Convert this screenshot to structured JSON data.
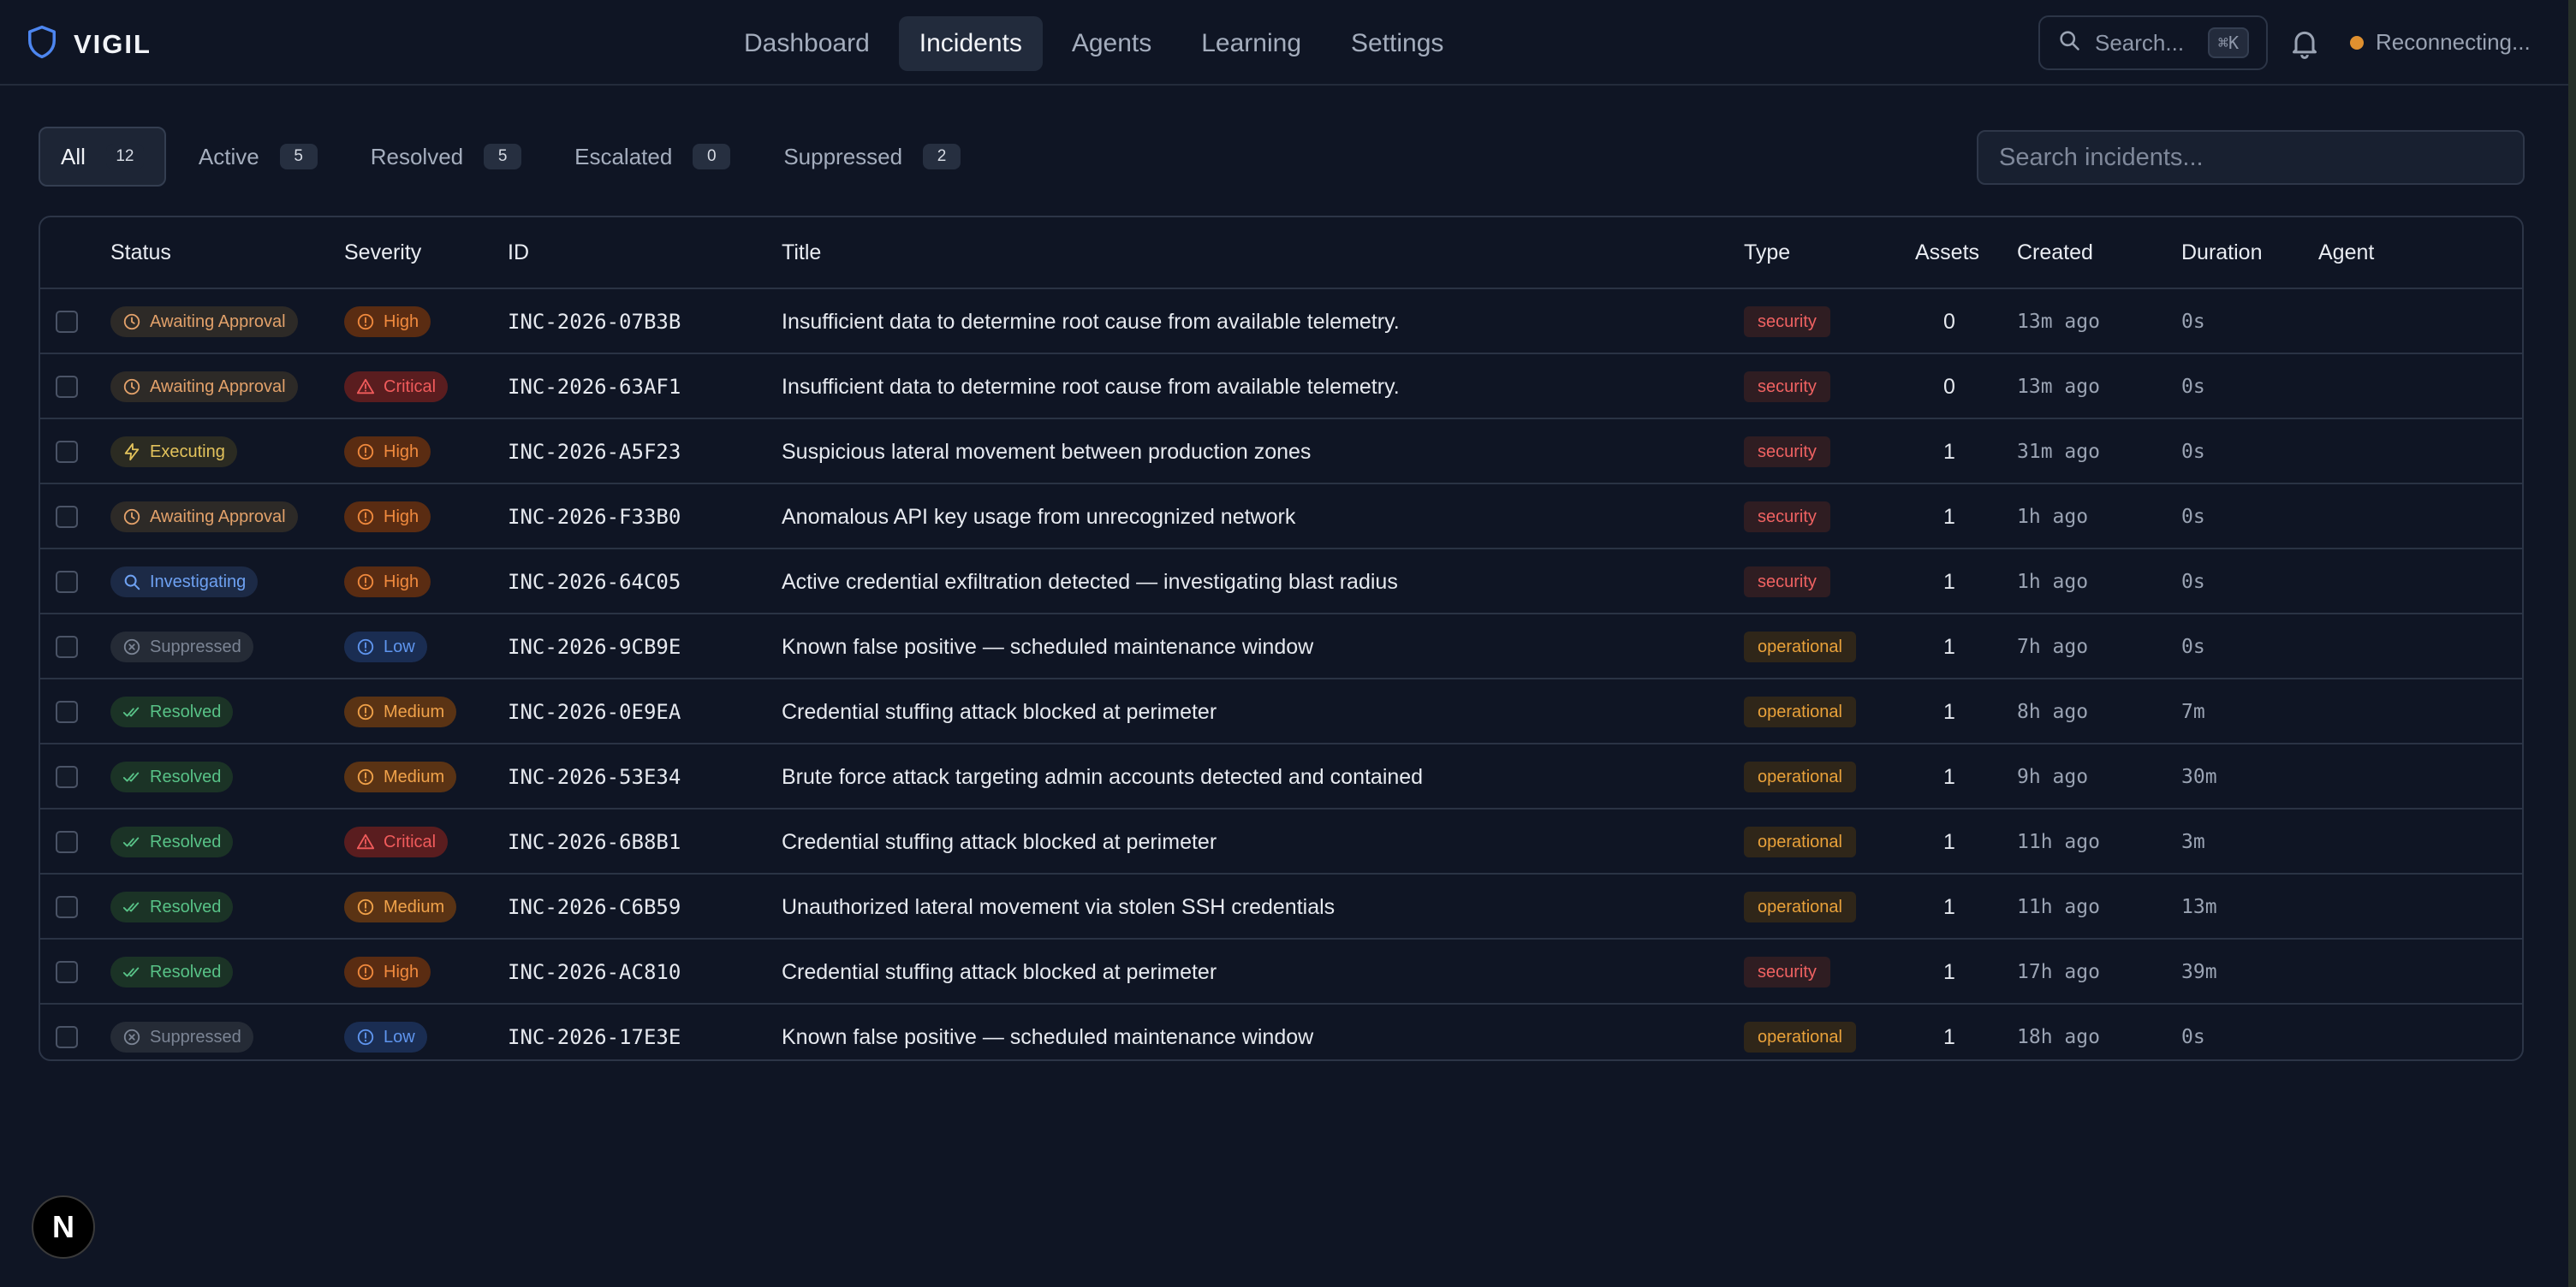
{
  "app": {
    "name": "VIGIL"
  },
  "nav": [
    {
      "label": "Dashboard"
    },
    {
      "label": "Incidents",
      "active": true
    },
    {
      "label": "Agents"
    },
    {
      "label": "Learning"
    },
    {
      "label": "Settings"
    }
  ],
  "global_search": {
    "label": "Search...",
    "shortcut": "⌘K"
  },
  "connection": {
    "status": "Reconnecting...",
    "color": "#e0902f"
  },
  "filters": [
    {
      "label": "All",
      "count": "12",
      "active": true
    },
    {
      "label": "Active",
      "count": "5"
    },
    {
      "label": "Resolved",
      "count": "5"
    },
    {
      "label": "Escalated",
      "count": "0"
    },
    {
      "label": "Suppressed",
      "count": "2"
    }
  ],
  "incident_search": {
    "placeholder": "Search incidents..."
  },
  "table": {
    "columns": [
      "Status",
      "Severity",
      "ID",
      "Title",
      "Type",
      "Assets",
      "Created",
      "Duration",
      "Agent"
    ],
    "rows": [
      {
        "status": "Awaiting Approval",
        "severity": "High",
        "id": "INC-2026-07B3B",
        "title": "Insufficient data to determine root cause from available telemetry.",
        "type": "security",
        "assets": "0",
        "created": "13m ago",
        "duration": "0s",
        "agent": ""
      },
      {
        "status": "Awaiting Approval",
        "severity": "Critical",
        "id": "INC-2026-63AF1",
        "title": "Insufficient data to determine root cause from available telemetry.",
        "type": "security",
        "assets": "0",
        "created": "13m ago",
        "duration": "0s",
        "agent": ""
      },
      {
        "status": "Executing",
        "severity": "High",
        "id": "INC-2026-A5F23",
        "title": "Suspicious lateral movement between production zones",
        "type": "security",
        "assets": "1",
        "created": "31m ago",
        "duration": "0s",
        "agent": ""
      },
      {
        "status": "Awaiting Approval",
        "severity": "High",
        "id": "INC-2026-F33B0",
        "title": "Anomalous API key usage from unrecognized network",
        "type": "security",
        "assets": "1",
        "created": "1h ago",
        "duration": "0s",
        "agent": ""
      },
      {
        "status": "Investigating",
        "severity": "High",
        "id": "INC-2026-64C05",
        "title": "Active credential exfiltration detected — investigating blast radius",
        "type": "security",
        "assets": "1",
        "created": "1h ago",
        "duration": "0s",
        "agent": ""
      },
      {
        "status": "Suppressed",
        "severity": "Low",
        "id": "INC-2026-9CB9E",
        "title": "Known false positive — scheduled maintenance window",
        "type": "operational",
        "assets": "1",
        "created": "7h ago",
        "duration": "0s",
        "agent": ""
      },
      {
        "status": "Resolved",
        "severity": "Medium",
        "id": "INC-2026-0E9EA",
        "title": "Credential stuffing attack blocked at perimeter",
        "type": "operational",
        "assets": "1",
        "created": "8h ago",
        "duration": "7m",
        "agent": ""
      },
      {
        "status": "Resolved",
        "severity": "Medium",
        "id": "INC-2026-53E34",
        "title": "Brute force attack targeting admin accounts detected and contained",
        "type": "operational",
        "assets": "1",
        "created": "9h ago",
        "duration": "30m",
        "agent": ""
      },
      {
        "status": "Resolved",
        "severity": "Critical",
        "id": "INC-2026-6B8B1",
        "title": "Credential stuffing attack blocked at perimeter",
        "type": "operational",
        "assets": "1",
        "created": "11h ago",
        "duration": "3m",
        "agent": ""
      },
      {
        "status": "Resolved",
        "severity": "Medium",
        "id": "INC-2026-C6B59",
        "title": "Unauthorized lateral movement via stolen SSH credentials",
        "type": "operational",
        "assets": "1",
        "created": "11h ago",
        "duration": "13m",
        "agent": ""
      },
      {
        "status": "Resolved",
        "severity": "High",
        "id": "INC-2026-AC810",
        "title": "Credential stuffing attack blocked at perimeter",
        "type": "security",
        "assets": "1",
        "created": "17h ago",
        "duration": "39m",
        "agent": ""
      },
      {
        "status": "Suppressed",
        "severity": "Low",
        "id": "INC-2026-17E3E",
        "title": "Known false positive — scheduled maintenance window",
        "type": "operational",
        "assets": "1",
        "created": "18h ago",
        "duration": "0s",
        "agent": ""
      }
    ]
  },
  "dev_badge": {
    "label": "N"
  }
}
